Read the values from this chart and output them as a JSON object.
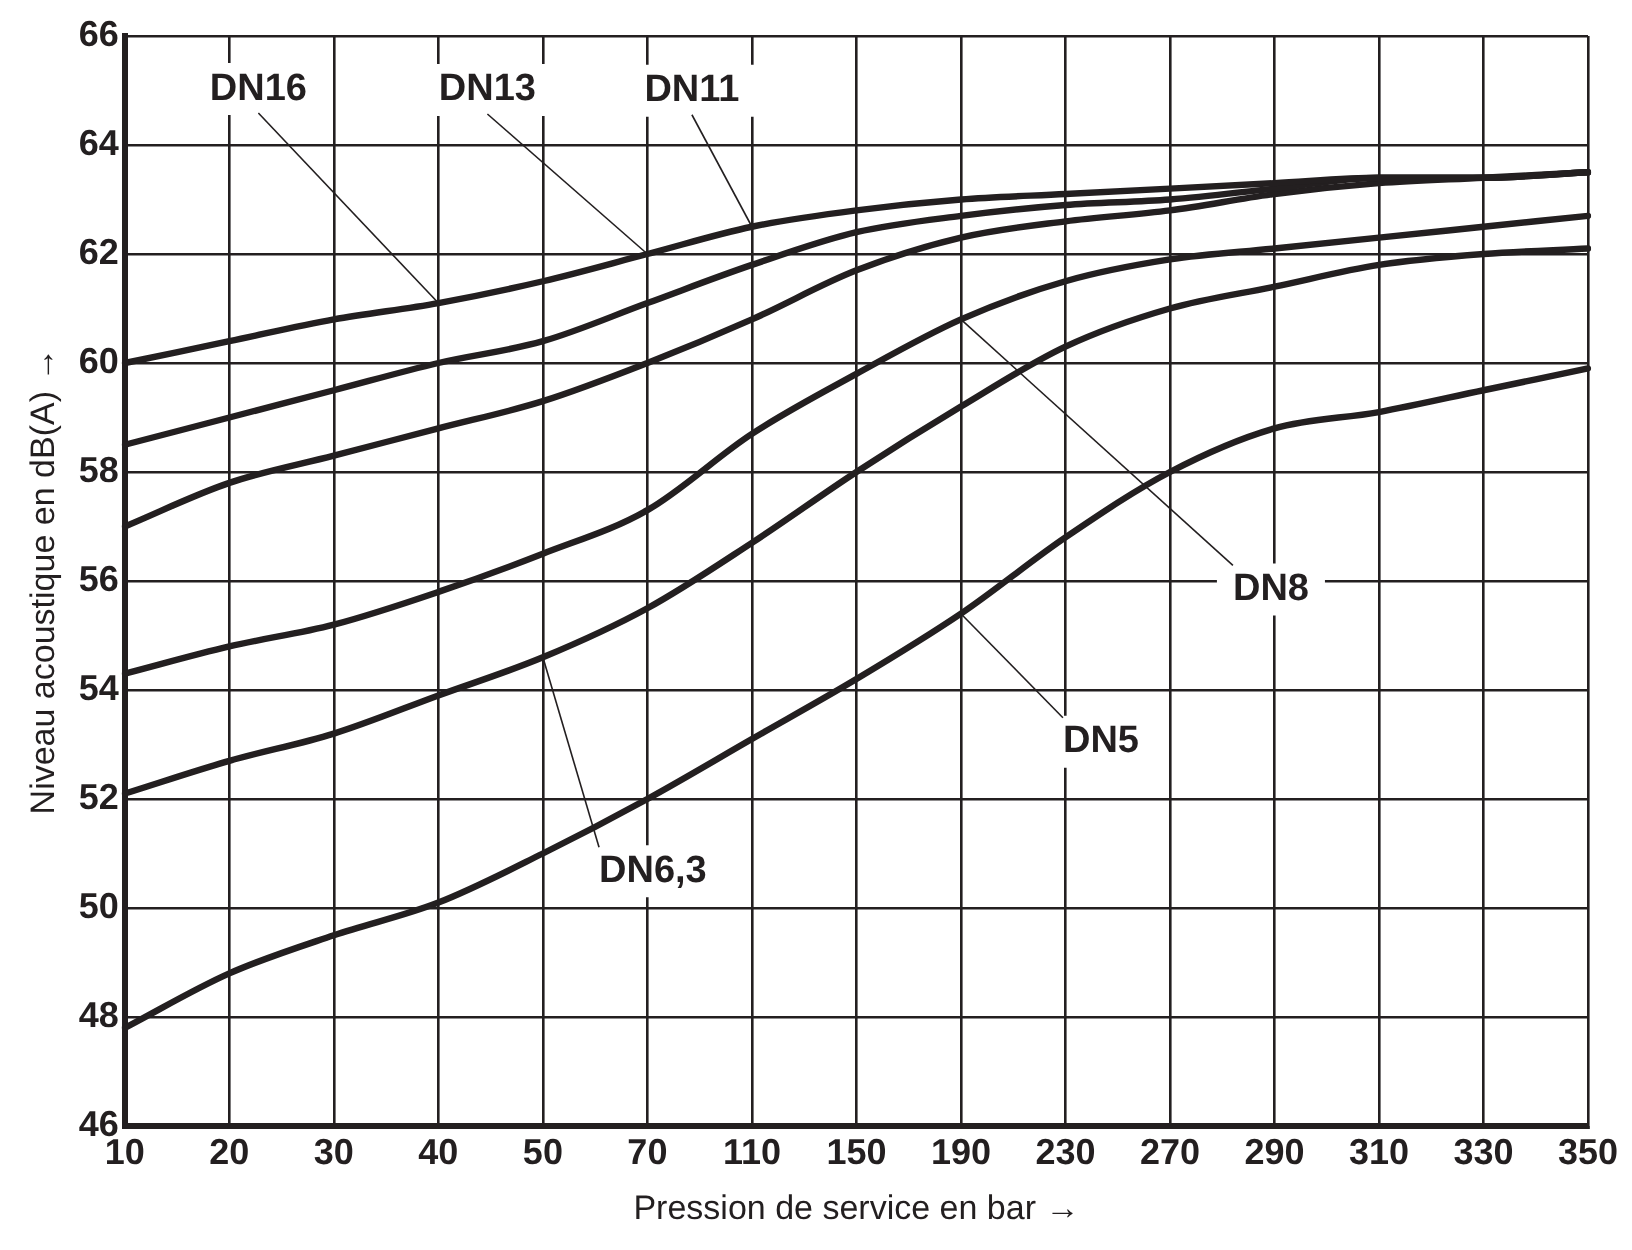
{
  "chart_data": {
    "type": "line",
    "xlabel": "Pression de service en bar →",
    "ylabel": "Niveau acoustique en dB(A) →",
    "categories": [
      "10",
      "20",
      "30",
      "40",
      "50",
      "70",
      "110",
      "150",
      "190",
      "230",
      "270",
      "290",
      "310",
      "330",
      "350"
    ],
    "series": [
      {
        "color": "#231f20",
        "values": [
          60.0,
          60.4,
          60.8,
          61.1,
          61.5,
          62.0,
          62.5,
          62.8,
          63.0,
          63.1,
          63.2,
          63.3,
          63.4,
          63.4,
          63.5
        ]
      },
      {
        "color": "#231f20",
        "values": [
          58.5,
          59.0,
          59.5,
          60.0,
          60.4,
          61.1,
          61.8,
          62.4,
          62.7,
          62.9,
          63.0,
          63.2,
          63.4,
          63.4,
          63.5
        ]
      },
      {
        "color": "#231f20",
        "values": [
          57.0,
          57.8,
          58.3,
          58.8,
          59.3,
          60.0,
          60.8,
          61.7,
          62.3,
          62.6,
          62.8,
          63.1,
          63.3,
          63.4,
          63.5
        ]
      },
      {
        "color": "#231f20",
        "values": [
          54.3,
          54.8,
          55.2,
          55.8,
          56.5,
          57.3,
          58.7,
          59.8,
          60.8,
          61.5,
          61.9,
          62.1,
          62.3,
          62.5,
          62.7
        ]
      },
      {
        "color": "#231f20",
        "values": [
          52.1,
          52.7,
          53.2,
          53.9,
          54.6,
          55.5,
          56.7,
          58.0,
          59.2,
          60.3,
          61.0,
          61.4,
          61.8,
          62.0,
          62.1
        ]
      },
      {
        "color": "#231f20",
        "values": [
          47.8,
          48.8,
          49.5,
          50.1,
          51.0,
          52.0,
          53.1,
          54.2,
          55.4,
          56.8,
          58.0,
          58.8,
          59.1,
          59.5,
          59.9
        ]
      }
    ],
    "ylim": [
      46,
      66
    ],
    "yticks": [
      46,
      48,
      50,
      52,
      54,
      56,
      58,
      60,
      62,
      64,
      66
    ],
    "grid": true,
    "legend": false,
    "marker": "none",
    "line_style": "solid",
    "annotations": [
      {
        "text": "DN16",
        "x": "40",
        "y": 61.1
      },
      {
        "text": "DN13",
        "x": "70",
        "y": 62.0
      },
      {
        "text": "DN11",
        "x": "110",
        "y": 62.5
      },
      {
        "text": "DN8",
        "x": "190",
        "y": 60.8
      },
      {
        "text": "DN6,3",
        "x": "50",
        "y": 54.6
      },
      {
        "text": "DN5",
        "x": "190",
        "y": 55.4
      }
    ]
  }
}
